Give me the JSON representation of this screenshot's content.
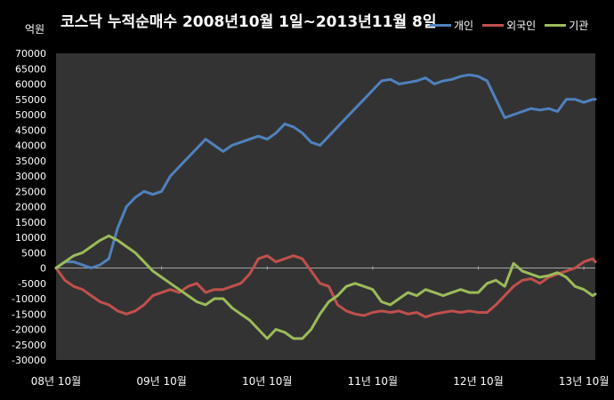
{
  "chart_data": {
    "type": "line",
    "title": "코스닥  누적순매수 2008년10월 1일~2013년11월 8일",
    "unit_label": "억원",
    "ylim": [
      -30000,
      70000
    ],
    "y_ticks": [
      70000,
      65000,
      60000,
      55000,
      50000,
      45000,
      40000,
      35000,
      30000,
      25000,
      20000,
      15000,
      10000,
      5000,
      0,
      -5000,
      -10000,
      -15000,
      -20000,
      -25000,
      -30000
    ],
    "y_tick_labels": [
      "70000",
      "65000",
      "60000",
      "55000",
      "50000",
      "45000",
      "40000",
      "35000",
      "30000",
      "25000",
      "20000",
      "15000",
      "10000",
      "5000",
      "0",
      "-5000",
      "-10000",
      "-15000",
      "-20000",
      "-25000",
      "-30000"
    ],
    "x_tick_labels": [
      "08년 10월",
      "09년 10월",
      "10년 10월",
      "11년 10월",
      "12년 10월",
      "13년 10월"
    ],
    "x_ticks": [
      0,
      12,
      24,
      36,
      48,
      60
    ],
    "x_end": 61.3,
    "x_unit": "months since 2008-10",
    "grid": false,
    "legend_position": "top-right",
    "series": [
      {
        "name": "개인",
        "color": "#4f81bd",
        "x": [
          0,
          1,
          2,
          3,
          4,
          5,
          6,
          7,
          8,
          9,
          10,
          11,
          12,
          13,
          14,
          15,
          16,
          17,
          18,
          19,
          20,
          21,
          22,
          23,
          24,
          25,
          26,
          27,
          28,
          29,
          30,
          31,
          32,
          33,
          34,
          35,
          36,
          37,
          38,
          39,
          40,
          41,
          42,
          43,
          44,
          45,
          46,
          47,
          48,
          49,
          50,
          51,
          52,
          53,
          54,
          55,
          56,
          57,
          58,
          59,
          60,
          61,
          61.3
        ],
        "values": [
          0,
          2000,
          2000,
          1000,
          0,
          1000,
          3000,
          13000,
          20000,
          23000,
          25000,
          24000,
          25000,
          30000,
          33000,
          36000,
          39000,
          42000,
          40000,
          38000,
          40000,
          41000,
          42000,
          43000,
          42000,
          44000,
          47000,
          46000,
          44000,
          41000,
          40000,
          43000,
          46000,
          49000,
          52000,
          55000,
          58000,
          61000,
          61500,
          60000,
          60500,
          61000,
          62000,
          60000,
          61000,
          61500,
          62500,
          63000,
          62500,
          61000,
          55000,
          49000,
          50000,
          51000,
          52000,
          51500,
          52000,
          51000,
          55000,
          55000,
          54000,
          55000,
          55000
        ]
      },
      {
        "name": "외국인",
        "color": "#c0504d",
        "x": [
          0,
          1,
          2,
          3,
          4,
          5,
          6,
          7,
          8,
          9,
          10,
          11,
          12,
          13,
          14,
          15,
          16,
          17,
          18,
          19,
          20,
          21,
          22,
          23,
          24,
          25,
          26,
          27,
          28,
          29,
          30,
          31,
          32,
          33,
          34,
          35,
          36,
          37,
          38,
          39,
          40,
          41,
          42,
          43,
          44,
          45,
          46,
          47,
          48,
          49,
          50,
          51,
          52,
          53,
          54,
          55,
          56,
          57,
          58,
          59,
          60,
          61,
          61.3
        ],
        "values": [
          0,
          -4000,
          -6000,
          -7000,
          -9000,
          -11000,
          -12000,
          -14000,
          -15000,
          -14000,
          -12000,
          -9000,
          -8000,
          -7000,
          -8000,
          -6000,
          -5000,
          -8000,
          -7000,
          -7000,
          -6000,
          -5000,
          -2000,
          3000,
          4000,
          2000,
          3000,
          4000,
          3000,
          -1000,
          -5000,
          -6000,
          -12000,
          -14000,
          -15000,
          -15500,
          -14500,
          -14000,
          -14500,
          -14000,
          -15000,
          -14500,
          -16000,
          -15000,
          -14500,
          -14000,
          -14500,
          -14000,
          -14500,
          -14500,
          -12000,
          -9000,
          -6000,
          -4000,
          -3500,
          -5000,
          -3000,
          -2000,
          -1000,
          0,
          2000,
          3000,
          2000
        ]
      },
      {
        "name": "기관",
        "color": "#9bbb59",
        "x": [
          0,
          1,
          2,
          3,
          4,
          5,
          6,
          7,
          8,
          9,
          10,
          11,
          12,
          13,
          14,
          15,
          16,
          17,
          18,
          19,
          20,
          21,
          22,
          23,
          24,
          25,
          26,
          27,
          28,
          29,
          30,
          31,
          32,
          33,
          34,
          35,
          36,
          37,
          38,
          39,
          40,
          41,
          42,
          43,
          44,
          45,
          46,
          47,
          48,
          49,
          50,
          51,
          52,
          53,
          54,
          55,
          56,
          57,
          58,
          59,
          60,
          61,
          61.3
        ],
        "values": [
          0,
          2000,
          4000,
          5000,
          7000,
          9000,
          10500,
          9000,
          7000,
          5000,
          2000,
          -1000,
          -3000,
          -5000,
          -7000,
          -9000,
          -11000,
          -12000,
          -10000,
          -10000,
          -13000,
          -15000,
          -17000,
          -20000,
          -23000,
          -20000,
          -21000,
          -23000,
          -23000,
          -20000,
          -15000,
          -11000,
          -9000,
          -6000,
          -5000,
          -6000,
          -7000,
          -11000,
          -12000,
          -10000,
          -8000,
          -9000,
          -7000,
          -8000,
          -9000,
          -8000,
          -7000,
          -8000,
          -8000,
          -5000,
          -4000,
          -6000,
          1500,
          -1000,
          -2000,
          -3000,
          -2500,
          -1500,
          -3000,
          -6000,
          -7000,
          -9000,
          -8500
        ]
      }
    ]
  }
}
